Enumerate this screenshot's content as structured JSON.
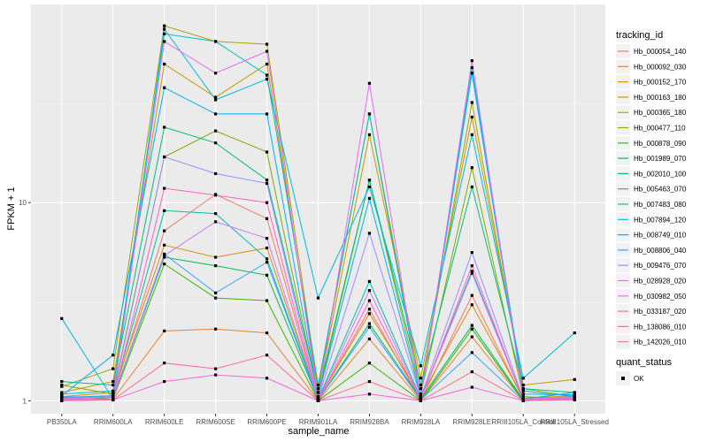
{
  "chart_data": {
    "type": "line",
    "xlabel": "sample_name",
    "ylabel": "FPKM + 1",
    "yscale": "log10",
    "ylim": [
      0.86,
      100
    ],
    "yticks": [
      1,
      10
    ],
    "ytick_labels": [
      "1",
      "10"
    ],
    "grid": true,
    "legend_position": "right",
    "categories": [
      "PB350LA",
      "RRIM600LA",
      "RRIM600LE",
      "RRIM600SE",
      "RRIM600PE",
      "RRIM901LA",
      "RRIM928BA",
      "RRIM928LA",
      "RRIM928LE",
      "RRIII105LA_Control",
      "RRIII105LA_Stressed"
    ],
    "legend_title": "tracking_id",
    "shape_legend_title": "quant_status",
    "shape_legend_entries": [
      "OK"
    ],
    "series": [
      {
        "name": "Hb_000054_140",
        "color": "#F8766D",
        "values": [
          1.02,
          1.05,
          7.2,
          11.0,
          8.3,
          1.01,
          2.9,
          1.0,
          3.4,
          1.01,
          1.05
        ]
      },
      {
        "name": "Hb_000092_030",
        "color": "#EA8331",
        "values": [
          1.01,
          1.02,
          2.25,
          2.3,
          2.2,
          1.0,
          2.05,
          1.0,
          2.1,
          1.0,
          1.02
        ]
      },
      {
        "name": "Hb_000152_170",
        "color": "#D89000",
        "values": [
          1.05,
          1.1,
          6.1,
          5.3,
          5.9,
          1.02,
          2.75,
          1.05,
          3.05,
          1.03,
          1.06
        ]
      },
      {
        "name": "Hb_000163_180",
        "color": "#C09B00",
        "values": [
          1.1,
          1.25,
          50.0,
          34.0,
          50.0,
          1.1,
          22.0,
          1.3,
          27.0,
          1.2,
          1.28
        ]
      },
      {
        "name": "Hb_000365_180",
        "color": "#A3A500",
        "values": [
          1.18,
          1.45,
          78.0,
          65.0,
          63.0,
          1.15,
          28.0,
          1.15,
          32.0,
          1.15,
          1.05
        ]
      },
      {
        "name": "Hb_000477_110",
        "color": "#7CAE00",
        "values": [
          1.2,
          1.08,
          17.0,
          23.0,
          18.0,
          1.05,
          13.0,
          1.08,
          15.0,
          1.05,
          1.02
        ]
      },
      {
        "name": "Hb_000878_090",
        "color": "#39B600",
        "values": [
          1.05,
          1.02,
          4.9,
          3.3,
          3.2,
          1.0,
          1.55,
          1.0,
          2.3,
          1.0,
          1.03
        ]
      },
      {
        "name": "Hb_001989_070",
        "color": "#00BB4E",
        "values": [
          1.03,
          1.04,
          5.3,
          4.8,
          4.3,
          1.01,
          2.45,
          1.02,
          2.4,
          1.01,
          1.04
        ]
      },
      {
        "name": "Hb_002010_100",
        "color": "#00BF7D",
        "values": [
          1.25,
          1.2,
          24.0,
          20.0,
          13.0,
          1.1,
          13.0,
          1.2,
          12.0,
          1.15,
          1.1
        ]
      },
      {
        "name": "Hb_005463_070",
        "color": "#00C1A3",
        "values": [
          1.04,
          1.06,
          9.1,
          8.8,
          5.2,
          1.02,
          4.0,
          1.03,
          4.5,
          1.02,
          1.1
        ]
      },
      {
        "name": "Hb_007483_080",
        "color": "#00BFC4",
        "values": [
          1.08,
          1.12,
          71.0,
          65.0,
          44.0,
          1.2,
          28.0,
          1.05,
          48.0,
          1.12,
          1.05
        ]
      },
      {
        "name": "Hb_007894_120",
        "color": "#00BAE0",
        "values": [
          2.6,
          1.02,
          75.0,
          33.0,
          42.0,
          3.3,
          12.0,
          1.5,
          22.0,
          1.3,
          2.2
        ]
      },
      {
        "name": "Hb_008749_010",
        "color": "#00B0F6",
        "values": [
          1.06,
          1.7,
          38.0,
          28.0,
          28.0,
          1.05,
          10.5,
          1.05,
          45.0,
          1.08,
          1.07
        ]
      },
      {
        "name": "Hb_008806_040",
        "color": "#35A2FF",
        "values": [
          1.05,
          1.04,
          5.5,
          3.5,
          5.0,
          1.01,
          2.35,
          1.01,
          1.75,
          1.0,
          1.02
        ]
      },
      {
        "name": "Hb_009476_070",
        "color": "#9590FF",
        "values": [
          1.03,
          1.05,
          17.0,
          14.0,
          12.5,
          1.02,
          7.0,
          1.04,
          5.6,
          1.02,
          1.05
        ]
      },
      {
        "name": "Hb_028928_020",
        "color": "#C77CFF",
        "values": [
          1.02,
          1.04,
          5.4,
          8.0,
          6.6,
          1.01,
          3.6,
          1.02,
          4.4,
          1.01,
          1.03
        ]
      },
      {
        "name": "Hb_030982_050",
        "color": "#E76BF3",
        "values": [
          1.01,
          1.05,
          65.0,
          45.0,
          58.0,
          1.02,
          40.0,
          1.02,
          52.0,
          1.02,
          1.04
        ]
      },
      {
        "name": "Hb_033187_020",
        "color": "#FA62DB",
        "values": [
          1.0,
          1.01,
          1.25,
          1.35,
          1.3,
          1.0,
          1.08,
          1.0,
          1.17,
          1.0,
          1.01
        ]
      },
      {
        "name": "Hb_138086_010",
        "color": "#FF62BC",
        "values": [
          1.01,
          1.02,
          11.8,
          10.9,
          10.0,
          1.0,
          3.2,
          1.01,
          4.8,
          1.0,
          1.02
        ]
      },
      {
        "name": "Hb_142026_010",
        "color": "#FF6C91",
        "values": [
          1.0,
          1.01,
          1.55,
          1.45,
          1.7,
          1.0,
          1.25,
          1.0,
          1.4,
          1.0,
          1.01
        ]
      }
    ]
  }
}
